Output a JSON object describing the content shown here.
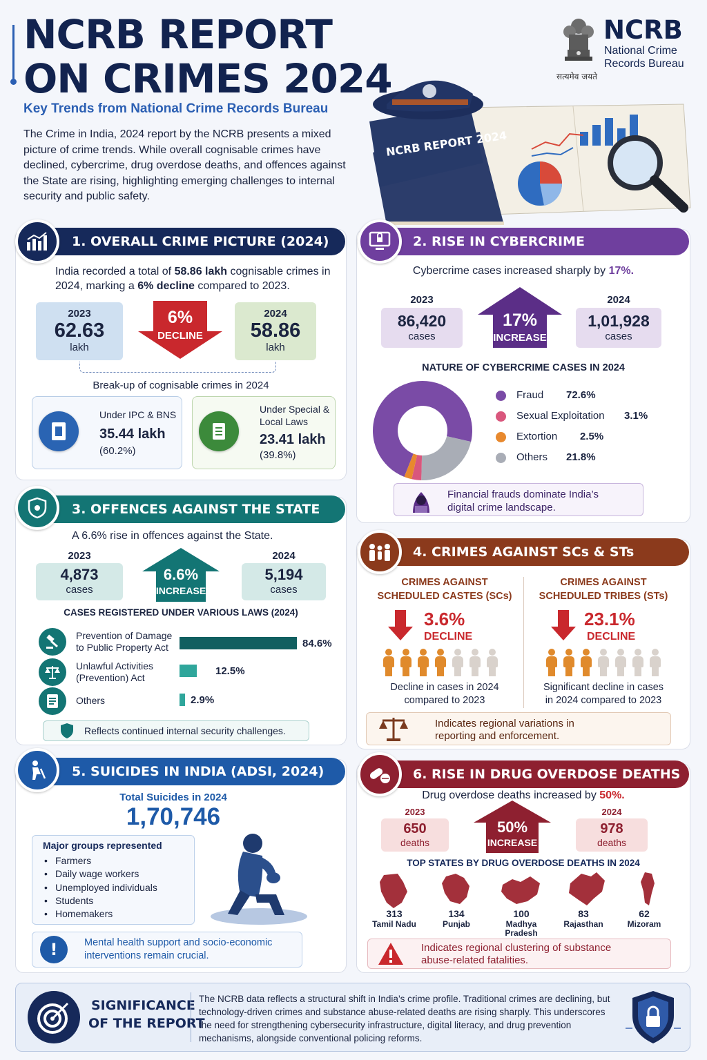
{
  "header": {
    "title_line1": "NCRB REPORT",
    "title_line2": "ON CRIMES 2024",
    "subtitle": "Key Trends from National Crime Records Bureau",
    "intro": "The Crime in India, 2024 report by the NCRB presents a mixed picture of crime trends. While overall cognisable crimes have declined, cybercrime, drug overdose deaths, and offences against the State are rising, highlighting emerging challenges to internal security and public safety.",
    "logo_abbr": "NCRB",
    "logo_name_line1": "National Crime",
    "logo_name_line2": "Records Bureau",
    "emblem_motto": "सत्यमेव जयते",
    "book_label": "NCRB REPORT 2024"
  },
  "s1": {
    "title": "1. OVERALL CRIME PICTURE (2024)",
    "intro_a": "India recorded a total of ",
    "intro_b": "58.86 lakh",
    "intro_c": " cognisable crimes in",
    "intro_d": "2024, marking a ",
    "intro_e": "6% decline",
    "intro_f": " compared to 2023.",
    "y1_label": "2023",
    "y1_value": "62.63",
    "y1_unit": "lakh",
    "change_value": "6%",
    "change_label": "DECLINE",
    "y2_label": "2024",
    "y2_value": "58.86",
    "y2_unit": "lakh",
    "breakup_title": "Break-up of cognisable crimes in 2024",
    "ipc_label": "Under IPC & BNS",
    "ipc_value": "35.44 lakh",
    "ipc_pct": "(60.2%)",
    "sll_label_1": "Under Special &",
    "sll_label_2": "Local Laws",
    "sll_value": "23.41 lakh",
    "sll_pct": "(39.8%)"
  },
  "s2": {
    "title": "2. RISE IN CYBERCRIME",
    "intro_a": "Cybercrime cases increased sharply by ",
    "intro_b": "17%.",
    "y1_label": "2023",
    "y1_value": "86,420",
    "y1_unit": "cases",
    "change_value": "17%",
    "change_label": "INCREASE",
    "y2_label": "2024",
    "y2_value": "1,01,928",
    "y2_unit": "cases",
    "nature_title": "NATURE OF CYBERCRIME CASES IN 2024",
    "legend": [
      {
        "label": "Fraud",
        "value": "72.6%",
        "pct": 72.6,
        "color": "#7a4ba6"
      },
      {
        "label": "Sexual Exploitation",
        "value": "3.1%",
        "pct": 3.1,
        "color": "#d9577d"
      },
      {
        "label": "Extortion",
        "value": "2.5%",
        "pct": 2.5,
        "color": "#e8892e"
      },
      {
        "label": "Others",
        "value": "21.8%",
        "pct": 21.8,
        "color": "#a9adb6"
      }
    ],
    "note_1": "Financial frauds dominate India’s",
    "note_2": "digital crime landscape."
  },
  "s3": {
    "title": "3. OFFENCES AGAINST THE STATE",
    "intro": "A 6.6% rise in offences against the State.",
    "y1_label": "2023",
    "y1_value": "4,873",
    "y1_unit": "cases",
    "change_value": "6.6%",
    "change_label": "INCREASE",
    "y2_label": "2024",
    "y2_value": "5,194",
    "y2_unit": "cases",
    "laws_title": "CASES REGISTERED UNDER VARIOUS LAWS (2024)",
    "laws": [
      {
        "l1": "Prevention of Damage",
        "l2": "to Public Property Act",
        "value": "84.6%",
        "pct": 84.6
      },
      {
        "l1": "Unlawful Activities",
        "l2": "(Prevention) Act",
        "value": "12.5%",
        "pct": 12.5
      },
      {
        "l1": "Others",
        "l2": "",
        "value": "2.9%",
        "pct": 2.9
      }
    ],
    "note": "Reflects continued internal security challenges."
  },
  "s4": {
    "title": "4. CRIMES AGAINST SCs & STs",
    "sc_title_1": "CRIMES AGAINST",
    "sc_title_2": "SCHEDULED CASTES (SCs)",
    "sc_value": "3.6%",
    "sc_label": "DECLINE",
    "sc_note_1": "Decline in cases in 2024",
    "sc_note_2": "compared to 2023",
    "st_title_1": "CRIMES AGAINST",
    "st_title_2": "SCHEDULED TRIBES (STs)",
    "st_value": "23.1%",
    "st_label": "DECLINE",
    "st_note_1": "Significant decline in cases",
    "st_note_2": "in 2024 compared to 2023",
    "note_1": "Indicates regional variations in",
    "note_2": "reporting and enforcement."
  },
  "s5": {
    "title": "5. SUICIDES IN INDIA (ADSI, 2024)",
    "total_label": "Total Suicides in 2024",
    "total_value": "1,70,746",
    "groups_title": "Major groups represented",
    "groups": [
      "Farmers",
      "Daily wage workers",
      "Unemployed individuals",
      "Students",
      "Homemakers"
    ],
    "note_1": "Mental health support and socio-economic",
    "note_2": "interventions remain crucial."
  },
  "s6": {
    "title": "6. RISE IN DRUG OVERDOSE DEATHS",
    "intro_a": "Drug overdose deaths increased by ",
    "intro_b": "50%.",
    "y1_label": "2023",
    "y1_value": "650",
    "y1_unit": "deaths",
    "change_value": "50%",
    "change_label": "INCREASE",
    "y2_label": "2024",
    "y2_value": "978",
    "y2_unit": "deaths",
    "states_title": "TOP STATES BY DRUG OVERDOSE DEATHS IN 2024",
    "states": [
      {
        "value": "313",
        "name": "Tamil Nadu",
        "name2": ""
      },
      {
        "value": "134",
        "name": "Punjab",
        "name2": ""
      },
      {
        "value": "100",
        "name": "Madhya",
        "name2": "Pradesh"
      },
      {
        "value": "83",
        "name": "Rajasthan",
        "name2": ""
      },
      {
        "value": "62",
        "name": "Mizoram",
        "name2": ""
      }
    ],
    "note_1": "Indicates regional clustering of substance",
    "note_2": "abuse-related fatalities."
  },
  "footer": {
    "title_1": "SIGNIFICANCE",
    "title_2": "OF THE REPORT",
    "text": "The NCRB data reflects a structural shift in India’s crime profile. Traditional crimes are declining, but technology-driven crimes and substance abuse-related deaths are rising sharply. This underscores the need for strengthening cybersecurity infrastructure, digital literacy, and drug prevention mechanisms, alongside conventional policing reforms."
  },
  "colors": {
    "navy": "#16295a",
    "purple": "#6f3f9e",
    "teal": "#137574",
    "brown": "#8b3a1c",
    "blue": "#1e5aa8",
    "maroon": "#8e2030",
    "red": "#c9282d"
  }
}
